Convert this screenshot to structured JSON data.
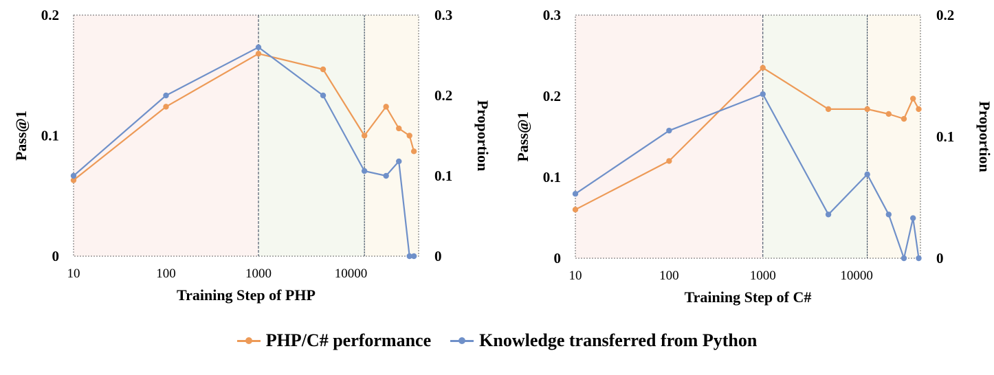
{
  "colors": {
    "performance": "#ed9a57",
    "transfer": "#6f90c9",
    "region_1": "#fdf3f1",
    "region_2": "#f5f8f0",
    "region_3": "#fdf9ef"
  },
  "legend": {
    "performance_label": "PHP/C# performance",
    "transfer_label": "Knowledge transferred from Python"
  },
  "chart_data": [
    {
      "type": "line",
      "xlabel": "Training Step of PHP",
      "ylabel_left": "Pass@1",
      "ylabel_right": "Proportion",
      "x_scale": "log",
      "xlim": [
        10,
        54000
      ],
      "x_ticks": [
        10,
        100,
        1000,
        10000
      ],
      "x_tick_labels": [
        "10",
        "100",
        "1000",
        "10000"
      ],
      "ylim_left": [
        0,
        0.2
      ],
      "y_ticks_left": [
        0,
        0.1,
        0.2
      ],
      "y_tick_labels_left": [
        "0",
        "0.1",
        "0.2"
      ],
      "ylim_right": [
        0,
        0.3
      ],
      "y_ticks_right": [
        0,
        0.1,
        0.2,
        0.3
      ],
      "y_tick_labels_right": [
        "0",
        "0.1",
        "0.2",
        "0.3"
      ],
      "dividers": [
        1000,
        14000
      ],
      "series": [
        {
          "name": "PHP/C# performance",
          "axis": "left",
          "x": [
            10,
            100,
            1000,
            5000,
            14000,
            24000,
            33000,
            43000,
            48000
          ],
          "y": [
            0.063,
            0.124,
            0.168,
            0.155,
            0.1,
            0.124,
            0.106,
            0.1,
            0.087
          ]
        },
        {
          "name": "Knowledge transferred from Python",
          "axis": "right",
          "x": [
            10,
            100,
            1000,
            5000,
            14000,
            24000,
            33000,
            43000,
            48000
          ],
          "y": [
            0.1,
            0.2,
            0.26,
            0.2,
            0.106,
            0.1,
            0.118,
            0,
            0
          ]
        }
      ]
    },
    {
      "type": "line",
      "xlabel": "Training Step of C#",
      "ylabel_left": "Pass@1",
      "ylabel_right": "Proportion",
      "x_scale": "log",
      "xlim": [
        10,
        48000
      ],
      "x_ticks": [
        10,
        100,
        1000,
        10000
      ],
      "x_tick_labels": [
        "10",
        "100",
        "1000",
        "10000"
      ],
      "ylim_left": [
        0,
        0.3
      ],
      "y_ticks_left": [
        0,
        0.1,
        0.2,
        0.3
      ],
      "y_tick_labels_left": [
        "0",
        "0.1",
        "0.2",
        "0.3"
      ],
      "ylim_right": [
        0,
        0.2
      ],
      "y_ticks_right": [
        0,
        0.1,
        0.2
      ],
      "y_tick_labels_right": [
        "0",
        "0.1",
        "0.2"
      ],
      "dividers": [
        1000,
        13000
      ],
      "series": [
        {
          "name": "PHP/C# performance",
          "axis": "left",
          "x": [
            10,
            100,
            1000,
            5000,
            13000,
            22000,
            32000,
            40000,
            46000
          ],
          "y": [
            0.06,
            0.12,
            0.235,
            0.184,
            0.184,
            0.178,
            0.172,
            0.197,
            0.184
          ]
        },
        {
          "name": "Knowledge transferred from Python",
          "axis": "right",
          "x": [
            10,
            100,
            1000,
            5000,
            13000,
            22000,
            32000,
            40000,
            46000
          ],
          "y": [
            0.053,
            0.105,
            0.135,
            0.036,
            0.069,
            0.036,
            0,
            0.033,
            0
          ]
        }
      ]
    }
  ]
}
